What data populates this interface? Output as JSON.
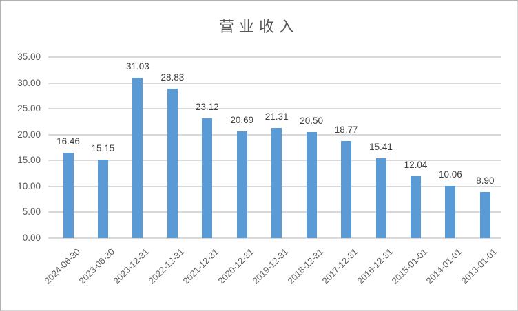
{
  "chart_data": {
    "type": "bar",
    "title": "营业收入",
    "categories": [
      "2024-06-30",
      "2023-06-30",
      "2023-12-31",
      "2022-12-31",
      "2021-12-31",
      "2020-12-31",
      "2019-12-31",
      "2018-12-31",
      "2017-12-31",
      "2016-12-31",
      "2015-01-01",
      "2014-01-01",
      "2013-01-01"
    ],
    "values": [
      16.46,
      15.15,
      31.03,
      28.83,
      23.12,
      20.69,
      21.31,
      20.5,
      18.77,
      15.41,
      12.04,
      10.06,
      8.9
    ],
    "data_labels": [
      "16.46",
      "15.15",
      "31.03",
      "28.83",
      "23.12",
      "20.69",
      "21.31",
      "20.50",
      "18.77",
      "15.41",
      "12.04",
      "10.06",
      "8.90"
    ],
    "y_tick_labels": [
      "35.00",
      "30.00",
      "25.00",
      "20.00",
      "15.00",
      "10.00",
      "5.00",
      "0.00"
    ],
    "y_tick_values": [
      35,
      30,
      25,
      20,
      15,
      10,
      5,
      0
    ],
    "ylim": [
      0,
      35
    ],
    "grid": true,
    "legend": "none",
    "xlabel": "",
    "ylabel": "",
    "bar_color": "#5b9bd5",
    "gridline_color": "#d9d9d9",
    "axis_text_color": "#595959",
    "title_color": "#595959"
  }
}
